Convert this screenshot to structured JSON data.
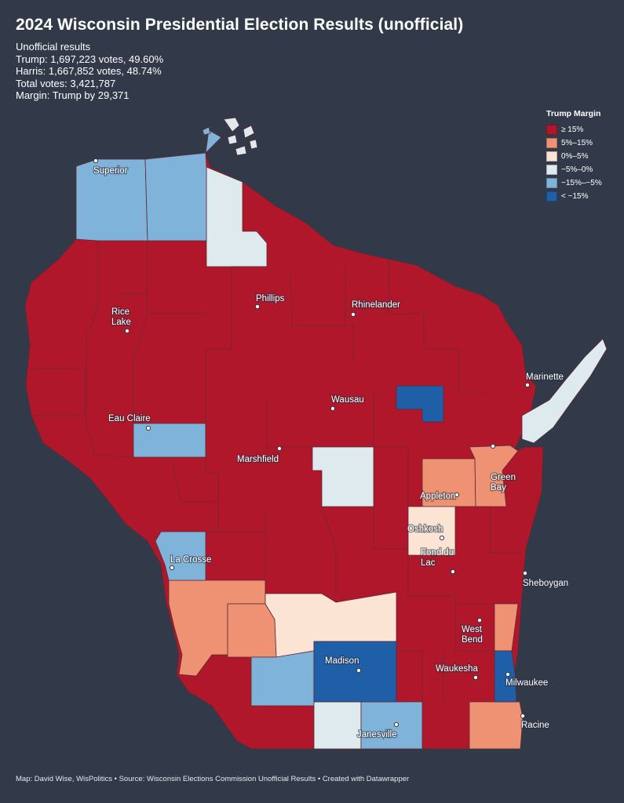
{
  "title": "2024 Wisconsin Presidential Election Results (unofficial)",
  "summary": {
    "line1": "Unofficial results",
    "line2": "Trump: 1,697,223 votes, 49.60%",
    "line3": "Harris: 1,667,852 votes, 48.74%",
    "line4": "Total votes: 3,421,787",
    "line5": "Margin: Trump by 29,371"
  },
  "legend": {
    "title": "Trump Margin",
    "items": [
      {
        "label": "≥ 15%",
        "color": "#b0172b"
      },
      {
        "label": "5%–15%",
        "color": "#ee9273"
      },
      {
        "label": "0%–5%",
        "color": "#fbe4d3"
      },
      {
        "label": "−5%–0%",
        "color": "#dfeaee"
      },
      {
        "label": "−15%–−5%",
        "color": "#80b3da"
      },
      {
        "label": "< −15%",
        "color": "#1f5fa8"
      }
    ]
  },
  "colors": {
    "background": "#323a49",
    "trump_strong": "#b0172b",
    "trump_lean": "#ee9273",
    "trump_tilt": "#fbe4d3",
    "harris_tilt": "#dfeaee",
    "harris_lean": "#80b3da",
    "harris_strong": "#1f5fa8"
  },
  "cities": [
    {
      "name": "Superior",
      "lines": [
        "Superior"
      ]
    },
    {
      "name": "Phillips",
      "lines": [
        "Phillips"
      ]
    },
    {
      "name": "Rhinelander",
      "lines": [
        "Rhinelander"
      ]
    },
    {
      "name": "Rice Lake",
      "lines": [
        "Rice",
        "Lake"
      ]
    },
    {
      "name": "Marinette",
      "lines": [
        "Marinette"
      ]
    },
    {
      "name": "Wausau",
      "lines": [
        "Wausau"
      ]
    },
    {
      "name": "Eau Claire",
      "lines": [
        "Eau Claire"
      ]
    },
    {
      "name": "Marshfield",
      "lines": [
        "Marshfield"
      ]
    },
    {
      "name": "Green Bay",
      "lines": [
        "Green",
        "Bay"
      ]
    },
    {
      "name": "Appleton",
      "lines": [
        "Appleton"
      ]
    },
    {
      "name": "Oshkosh",
      "lines": [
        "Oshkosh"
      ]
    },
    {
      "name": "Fond du Lac",
      "lines": [
        "Fond du",
        "Lac"
      ]
    },
    {
      "name": "La Crosse",
      "lines": [
        "La Crosse"
      ]
    },
    {
      "name": "Sheboygan",
      "lines": [
        "Sheboygan"
      ]
    },
    {
      "name": "West Bend",
      "lines": [
        "West",
        "Bend"
      ]
    },
    {
      "name": "Madison",
      "lines": [
        "Madison"
      ]
    },
    {
      "name": "Waukesha",
      "lines": [
        "Waukesha"
      ]
    },
    {
      "name": "Milwaukee",
      "lines": [
        "Milwaukee"
      ]
    },
    {
      "name": "Janesville",
      "lines": [
        "Janesville"
      ]
    },
    {
      "name": "Racine",
      "lines": [
        "Racine"
      ]
    }
  ],
  "footer": "Map: David Wise, WisPolitics • Source: Wisconsin Elections Commission Unofficial Results • Created with Datawrapper"
}
